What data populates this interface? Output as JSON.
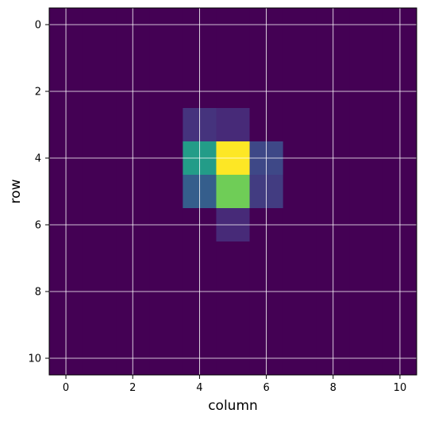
{
  "chart_data": {
    "type": "heatmap",
    "title": "",
    "xlabel": "column",
    "ylabel": "row",
    "colormap": "viridis",
    "color_range": [
      0,
      1
    ],
    "grid": true,
    "grid_color": "#ffffff",
    "xlim": [
      -0.5,
      10.5
    ],
    "ylim": [
      10.5,
      -0.5
    ],
    "x_ticks": [
      0,
      2,
      4,
      6,
      8,
      10
    ],
    "y_ticks": [
      0,
      2,
      4,
      6,
      8,
      10
    ],
    "rows": 11,
    "columns": 11,
    "values": [
      [
        0,
        0,
        0,
        0,
        0,
        0,
        0,
        0,
        0,
        0,
        0
      ],
      [
        0,
        0,
        0,
        0,
        0,
        0,
        0,
        0,
        0,
        0,
        0
      ],
      [
        0,
        0,
        0,
        0,
        0,
        0,
        0,
        0,
        0,
        0,
        0
      ],
      [
        0,
        0,
        0,
        0,
        0.15,
        0.12,
        0,
        0,
        0,
        0,
        0
      ],
      [
        0,
        0,
        0,
        0,
        0.55,
        1.0,
        0.22,
        0,
        0,
        0,
        0
      ],
      [
        0,
        0,
        0,
        0,
        0.3,
        0.78,
        0.18,
        0,
        0,
        0,
        0
      ],
      [
        0,
        0,
        0,
        0,
        0,
        0.12,
        0,
        0,
        0,
        0,
        0
      ],
      [
        0,
        0,
        0,
        0,
        0,
        0,
        0,
        0,
        0,
        0,
        0
      ],
      [
        0,
        0,
        0,
        0,
        0,
        0,
        0,
        0,
        0,
        0,
        0
      ],
      [
        0,
        0,
        0,
        0,
        0,
        0,
        0,
        0,
        0,
        0,
        0
      ],
      [
        0,
        0,
        0,
        0,
        0,
        0,
        0,
        0,
        0,
        0,
        0
      ]
    ]
  }
}
